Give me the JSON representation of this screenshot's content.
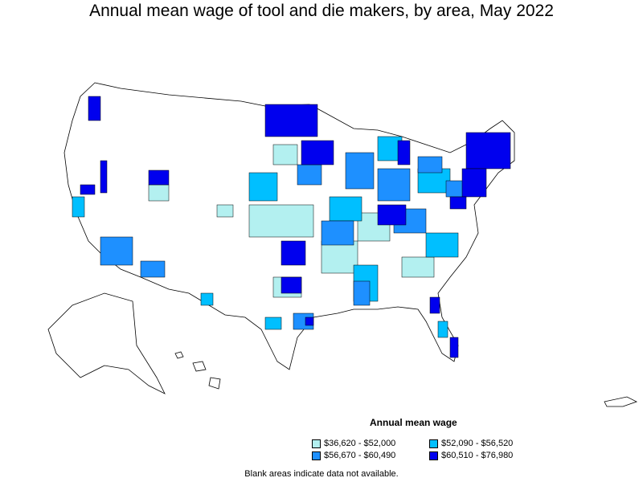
{
  "title": "Annual mean wage of tool and die makers, by area, May 2022",
  "legend": {
    "title": "Annual mean wage",
    "items": [
      {
        "label": "$36,620 - $52,000",
        "color": "#b3f0f0"
      },
      {
        "label": "$52,090 - $56,520",
        "color": "#00bfff"
      },
      {
        "label": "$56,670 - $60,490",
        "color": "#1e90ff"
      },
      {
        "label": "$60,510 - $76,980",
        "color": "#0000ee"
      }
    ]
  },
  "footnote": "Blank areas indicate data not available."
}
